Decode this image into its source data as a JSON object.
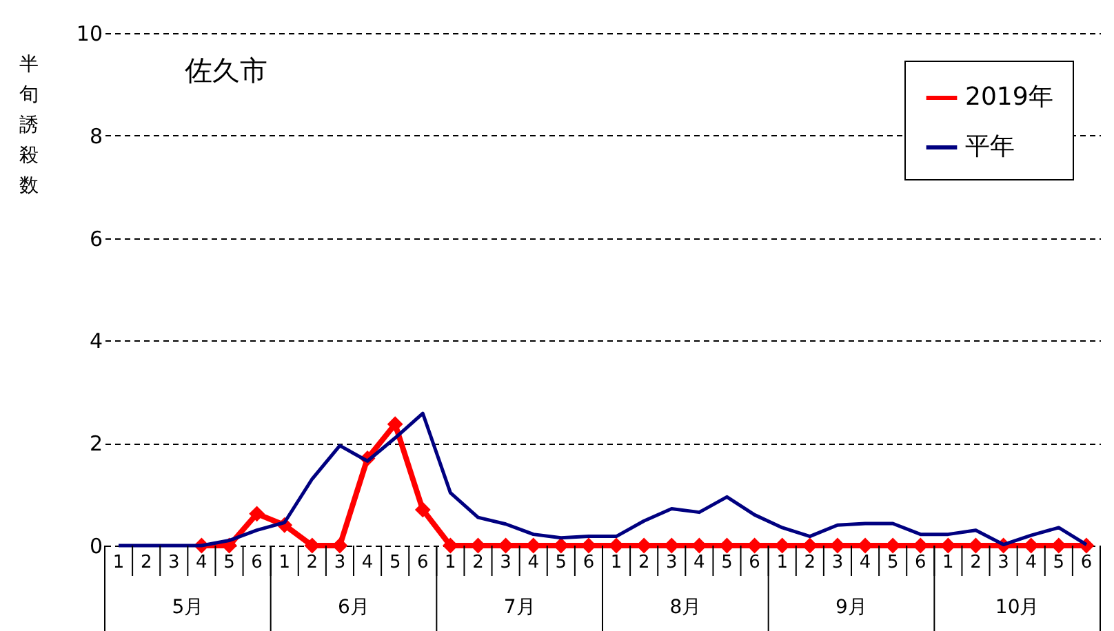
{
  "chart_data": {
    "type": "line",
    "title": "佐久市",
    "ylabel": "半旬誘殺数",
    "categories": [
      "1",
      "2",
      "3",
      "4",
      "5",
      "6",
      "1",
      "2",
      "3",
      "4",
      "5",
      "6",
      "1",
      "2",
      "3",
      "4",
      "5",
      "6",
      "1",
      "2",
      "3",
      "4",
      "5",
      "6",
      "1",
      "2",
      "3",
      "4",
      "5",
      "6",
      "1",
      "2",
      "3",
      "4",
      "5",
      "6"
    ],
    "annotations": [
      "5月",
      "6月",
      "7月",
      "8月",
      "9月",
      "10月"
    ],
    "series": [
      {
        "name": "2019年",
        "color": "#ff0000",
        "marker": "diamond",
        "values": [
          null,
          null,
          null,
          0,
          0,
          0.62,
          0.4,
          0,
          0,
          1.7,
          2.37,
          0.7,
          0,
          0,
          0,
          0,
          0,
          0,
          0,
          0,
          0,
          0,
          0,
          0,
          0,
          0,
          0,
          0,
          0,
          0,
          0,
          0,
          0,
          0,
          0,
          0
        ]
      },
      {
        "name": "平年",
        "color": "#000080",
        "marker": "none",
        "values": [
          0,
          0,
          0,
          0,
          0.1,
          0.3,
          0.45,
          1.3,
          1.95,
          1.65,
          2.1,
          2.58,
          1.03,
          0.55,
          0.42,
          0.22,
          0.15,
          0.18,
          0.18,
          0.48,
          0.72,
          0.65,
          0.95,
          0.6,
          0.35,
          0.18,
          0.4,
          0.43,
          0.43,
          0.22,
          0.22,
          0.3,
          0.02,
          0.2,
          0.35,
          0.02
        ]
      }
    ],
    "ylim": [
      0,
      10
    ],
    "yticks": [
      0,
      2,
      4,
      6,
      8,
      10
    ],
    "grid": "y",
    "line_style": "solid",
    "legend": "top right"
  }
}
